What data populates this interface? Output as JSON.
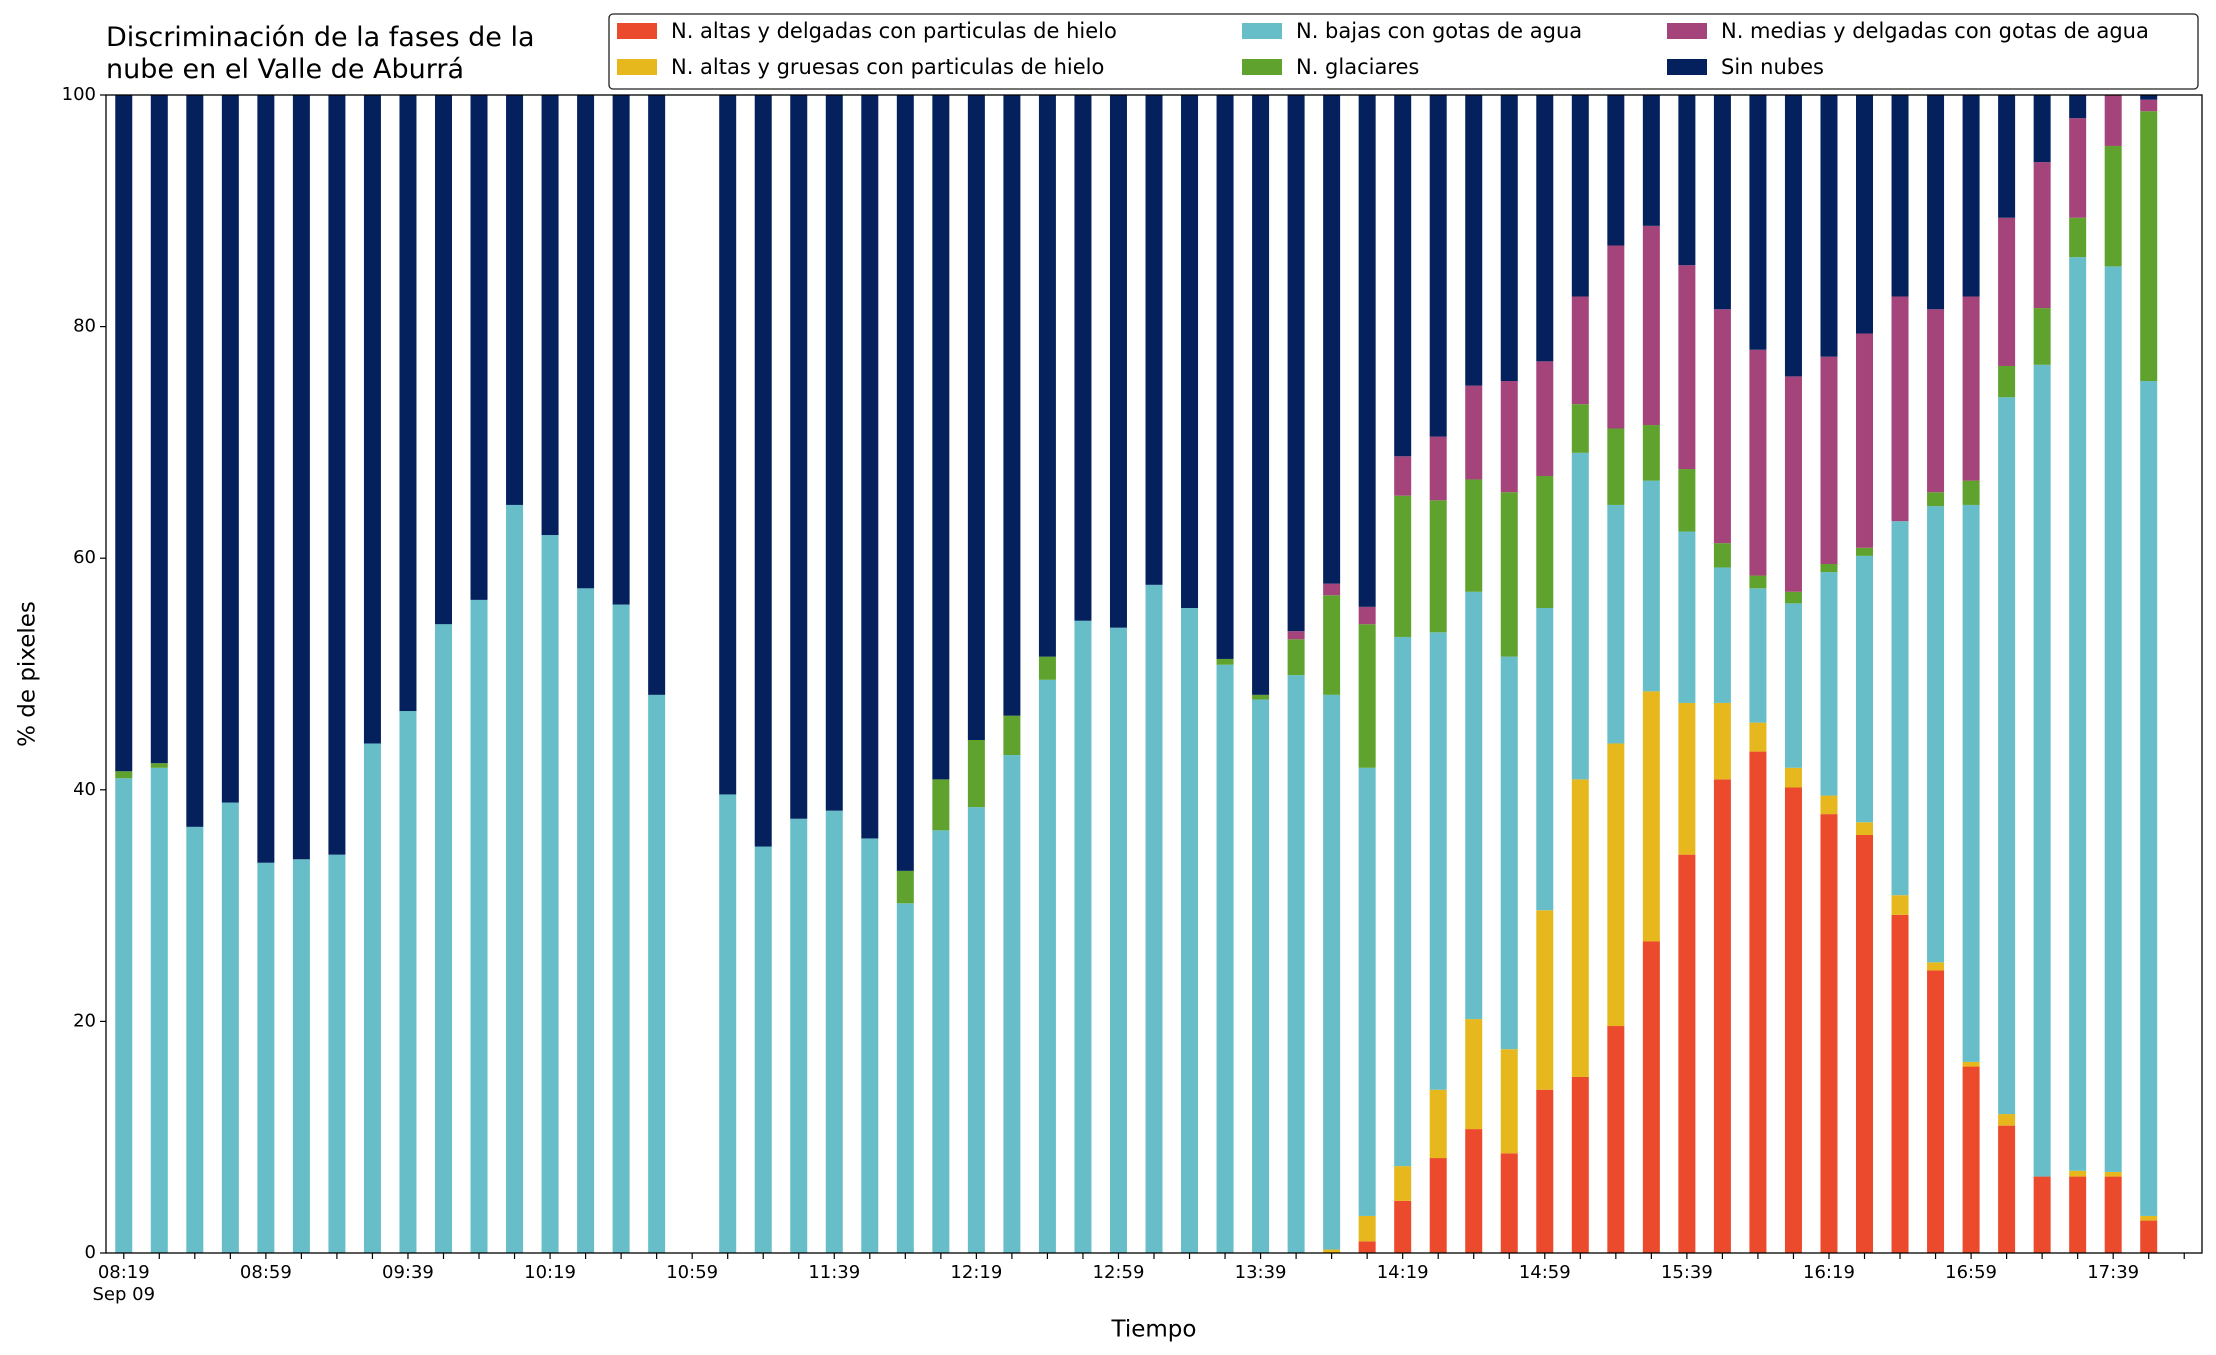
{
  "chart_data": {
    "type": "stacked_bar",
    "title": "Discriminación de la fases de la\nnube en el Valle de Aburrá",
    "x_label": "Tiempo",
    "y_label": "% de pixeles",
    "x_date_label": "Sep 09",
    "categories": [
      "08:19",
      null,
      null,
      null,
      "08:59",
      null,
      null,
      null,
      "09:39",
      null,
      null,
      null,
      "10:19",
      null,
      null,
      null,
      "10:59",
      null,
      null,
      null,
      "11:39",
      null,
      null,
      null,
      "12:19",
      null,
      null,
      null,
      "12:59",
      null,
      null,
      null,
      "13:39",
      null,
      null,
      null,
      "14:19",
      null,
      null,
      null,
      "14:59",
      null,
      null,
      null,
      "15:39",
      null,
      null,
      null,
      "16:19",
      null,
      null,
      null,
      "16:59",
      null,
      null,
      null,
      "17:39",
      null
    ],
    "ylim": [
      0,
      100
    ],
    "yticks": [
      0,
      20,
      40,
      60,
      80,
      100
    ],
    "grid": false,
    "legend": "upper right",
    "series": [
      {
        "name": "N. altas y delgadas con particulas de hielo",
        "color": "#ec4a2c",
        "values": [
          0,
          0,
          0,
          0,
          0,
          0,
          0,
          0,
          0,
          0,
          0,
          0,
          0,
          0,
          0,
          0,
          null,
          0,
          0,
          0,
          0,
          0,
          0,
          0,
          0,
          0,
          0,
          0,
          0,
          0,
          0,
          0,
          0,
          0,
          0,
          1.0,
          4.5,
          8.2,
          10.7,
          8.6,
          14.1,
          15.2,
          19.6,
          26.9,
          34.4,
          40.9,
          43.3,
          40.2,
          37.9,
          36.1,
          29.2,
          24.4,
          16.1,
          11.0,
          6.6,
          6.6,
          6.6,
          2.8
        ]
      },
      {
        "name": "N. altas y gruesas con particulas de hielo",
        "color": "#e6b81e",
        "values": [
          0,
          0,
          0,
          0,
          0,
          0,
          0,
          0,
          0,
          0,
          0,
          0,
          0,
          0,
          0,
          0,
          null,
          0,
          0,
          0,
          0,
          0,
          0,
          0,
          0,
          0,
          0,
          0,
          0,
          0,
          0,
          0,
          0,
          0,
          0.3,
          2.2,
          3.0,
          5.9,
          9.5,
          9.0,
          15.5,
          25.7,
          24.4,
          21.6,
          13.1,
          6.6,
          2.5,
          1.7,
          1.6,
          1.1,
          1.7,
          0.7,
          0.4,
          1.0,
          0,
          0.5,
          0.4,
          0.4
        ]
      },
      {
        "name": "N. bajas con gotas de agua",
        "color": "#67bec9",
        "values": [
          41.0,
          41.9,
          36.8,
          38.9,
          33.7,
          34.0,
          34.4,
          44.0,
          46.8,
          54.3,
          56.4,
          64.6,
          62.0,
          57.4,
          56.0,
          48.2,
          null,
          39.6,
          35.1,
          37.5,
          38.2,
          35.8,
          30.2,
          36.5,
          38.5,
          43.0,
          49.5,
          54.6,
          54.0,
          57.7,
          55.7,
          50.8,
          47.8,
          49.9,
          47.9,
          38.7,
          45.7,
          39.5,
          36.9,
          33.9,
          26.1,
          28.2,
          20.6,
          18.2,
          14.8,
          11.7,
          11.6,
          14.2,
          19.3,
          23.0,
          32.3,
          39.4,
          48.1,
          61.9,
          70.1,
          78.9,
          78.2,
          72.1
        ]
      },
      {
        "name": "N. glaciares",
        "color": "#5fa22d",
        "values": [
          0.6,
          0.4,
          0,
          0,
          0,
          0,
          0,
          0,
          0,
          0,
          0,
          0,
          0,
          0,
          0,
          0,
          null,
          0,
          0,
          0,
          0,
          0,
          2.8,
          4.4,
          5.8,
          3.4,
          2.0,
          0,
          0,
          0,
          0,
          0.5,
          0.4,
          3.1,
          8.6,
          12.4,
          12.2,
          11.4,
          9.7,
          14.2,
          11.4,
          4.2,
          6.6,
          4.8,
          5.4,
          2.1,
          1.1,
          1.0,
          0.7,
          0.7,
          0,
          1.2,
          2.1,
          2.7,
          4.9,
          3.4,
          10.4,
          23.3
        ]
      },
      {
        "name": "N. medias y delgadas con gotas de agua",
        "color": "#a5447a",
        "values": [
          0,
          0,
          0,
          0,
          0,
          0,
          0,
          0,
          0,
          0,
          0,
          0,
          0,
          0,
          0,
          0,
          null,
          0,
          0,
          0,
          0,
          0,
          0,
          0,
          0,
          0,
          0,
          0,
          0,
          0,
          0,
          0,
          0,
          0.7,
          1.0,
          1.5,
          3.4,
          5.5,
          8.1,
          9.6,
          9.9,
          9.3,
          15.8,
          17.2,
          17.6,
          20.2,
          19.5,
          18.6,
          17.9,
          18.5,
          19.4,
          15.8,
          15.9,
          12.8,
          12.6,
          8.6,
          4.4,
          1.0
        ]
      },
      {
        "name": "Sin nubes",
        "color": "#04215e",
        "values": [
          58.4,
          57.7,
          63.2,
          61.1,
          66.3,
          66.0,
          65.6,
          56.0,
          53.2,
          45.7,
          43.6,
          35.4,
          38.0,
          42.6,
          44.0,
          51.8,
          null,
          60.4,
          64.9,
          62.5,
          61.8,
          64.2,
          67.0,
          59.1,
          55.7,
          53.6,
          48.5,
          45.4,
          46.0,
          42.3,
          44.3,
          48.7,
          51.8,
          46.3,
          42.2,
          44.2,
          31.2,
          29.5,
          25.1,
          24.7,
          23.0,
          17.4,
          13.0,
          11.3,
          14.7,
          18.5,
          22.0,
          24.3,
          22.6,
          20.6,
          17.4,
          18.5,
          17.4,
          10.6,
          5.8,
          2.0,
          0,
          0.4
        ]
      }
    ]
  }
}
